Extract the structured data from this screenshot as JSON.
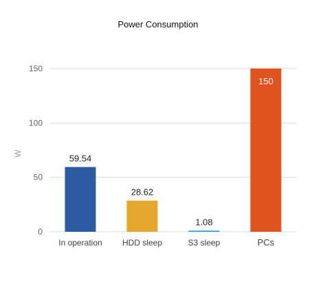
{
  "chart_data": {
    "type": "bar",
    "title": "Power Consumption",
    "xlabel": "",
    "ylabel": "W",
    "categories": [
      "In operation",
      "HDD sleep",
      "S3 sleep",
      "PCs"
    ],
    "values": [
      59.54,
      28.62,
      1.08,
      150
    ],
    "data_labels": [
      "59.54",
      "28.62",
      "1.08",
      "150"
    ],
    "colors": [
      "#2b5ca3",
      "#e3a82b",
      "#2aa0cf",
      "#e0531f"
    ],
    "ylim": [
      0,
      150
    ],
    "yticks": [
      0,
      50,
      100,
      150
    ],
    "grid": true,
    "legend": "none"
  }
}
